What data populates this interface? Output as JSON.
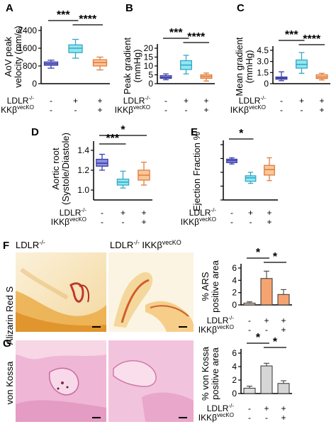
{
  "colors": {
    "ctrl_fill": "#8d8fe0",
    "ctrl_stroke": "#3b3fa8",
    "ldlr_fill": "#8ee8ef",
    "ldlr_stroke": "#3aa6c8",
    "ikk_fill": "#f8c79a",
    "ikk_stroke": "#e27c3c",
    "ars_ctrl": "#f7c9b6",
    "ars_ldlr": "#f5a470",
    "ars_ikk": "#f5a470",
    "vk_ctrl": "#dcdcdc",
    "vk_ldlr": "#d6d6d6",
    "vk_ikk": "#d6d6d6"
  },
  "conditions": {
    "ldlr_label": "LDLR",
    "ldlr_sup": "-/-",
    "ikk_label": "IKKβ",
    "ikk_sup": "vecKO",
    "groups": [
      {
        "ldlr": "-",
        "ikk": "-"
      },
      {
        "ldlr": "+",
        "ikk": "-"
      },
      {
        "ldlr": "+",
        "ikk": "+"
      }
    ]
  },
  "images": {
    "F": {
      "label": "F",
      "row_label": "Alizarin Red S",
      "left_title": "LDLR",
      "left_sup": "-/-",
      "right_title_a": "LDLR",
      "right_sup_a": "-/-",
      "right_title_b": " IKKβ",
      "right_sup_b": "vecKO"
    },
    "G": {
      "label": "G",
      "row_label": "von Kossa"
    }
  },
  "chart_data": [
    {
      "panel": "A",
      "type": "box",
      "ylabel": "AoV peak velocity (mm/s)",
      "ylim": [
        0,
        2400
      ],
      "yticks": [
        "0",
        "800",
        "1600",
        "2400"
      ],
      "boxes": [
        {
          "min": 700,
          "q1": 830,
          "median": 900,
          "q3": 980,
          "max": 1060
        },
        {
          "min": 1150,
          "q1": 1400,
          "median": 1600,
          "q3": 1750,
          "max": 2000
        },
        {
          "min": 620,
          "q1": 800,
          "median": 950,
          "q3": 1080,
          "max": 1200
        }
      ],
      "significance": [
        {
          "from": 0,
          "to": 1,
          "label": "***"
        },
        {
          "from": 1,
          "to": 2,
          "label": "****"
        }
      ]
    },
    {
      "panel": "B",
      "type": "box",
      "ylabel": "Peak gradient (mmHg)",
      "ylim": [
        0,
        20
      ],
      "yticks": [
        "0",
        "5",
        "10",
        "15",
        "20"
      ],
      "boxes": [
        {
          "min": 2.2,
          "q1": 3.0,
          "median": 3.5,
          "q3": 4.5,
          "max": 5.5
        },
        {
          "min": 5.5,
          "q1": 8.0,
          "median": 10.5,
          "q3": 13.0,
          "max": 16.0
        },
        {
          "min": 1.5,
          "q1": 3.0,
          "median": 4.0,
          "q3": 5.0,
          "max": 6.0
        }
      ],
      "significance": [
        {
          "from": 0,
          "to": 1,
          "label": "***"
        },
        {
          "from": 1,
          "to": 2,
          "label": "****"
        }
      ]
    },
    {
      "panel": "C",
      "type": "box",
      "ylabel": "Mean gradient (mmHg)",
      "ylim": [
        0,
        4.5
      ],
      "yticks": [
        "0",
        "1.5",
        "3.0",
        "4.5"
      ],
      "boxes": [
        {
          "min": 0.4,
          "q1": 0.6,
          "median": 0.75,
          "q3": 0.9,
          "max": 1.6
        },
        {
          "min": 1.4,
          "q1": 2.1,
          "median": 2.6,
          "q3": 3.2,
          "max": 4.2
        },
        {
          "min": 0.5,
          "q1": 0.7,
          "median": 0.9,
          "q3": 1.2,
          "max": 1.4
        }
      ],
      "significance": [
        {
          "from": 0,
          "to": 1,
          "label": "***"
        },
        {
          "from": 1,
          "to": 2,
          "label": "****"
        }
      ]
    },
    {
      "panel": "D",
      "type": "box",
      "ylabel": "Aortic root (Systole/Diastole)",
      "ylim": [
        0.9,
        1.45
      ],
      "yticks": [
        "1.0",
        "1.2",
        "1.4"
      ],
      "boxes": [
        {
          "min": 1.2,
          "q1": 1.24,
          "median": 1.27,
          "q3": 1.31,
          "max": 1.36
        },
        {
          "min": 1.02,
          "q1": 1.05,
          "median": 1.08,
          "q3": 1.11,
          "max": 1.19
        },
        {
          "min": 1.05,
          "q1": 1.1,
          "median": 1.15,
          "q3": 1.2,
          "max": 1.28
        }
      ],
      "significance": [
        {
          "from": 0,
          "to": 1,
          "label": "***"
        },
        {
          "from": 0,
          "to": 2,
          "label": "*"
        }
      ]
    },
    {
      "panel": "E",
      "type": "box",
      "ylabel": "Ejection Fraction %",
      "ylim": [
        0,
        80
      ],
      "yticks": [],
      "boxes": [
        {
          "min": 52,
          "q1": 54,
          "median": 57,
          "q3": 59,
          "max": 61
        },
        {
          "min": 24,
          "q1": 27,
          "median": 32,
          "q3": 35,
          "max": 40
        },
        {
          "min": 28,
          "q1": 36,
          "median": 44,
          "q3": 50,
          "max": 61
        }
      ],
      "significance": [
        {
          "from": 0,
          "to": 1,
          "label": "*"
        }
      ]
    },
    {
      "panel": "F",
      "type": "bar",
      "ylabel": "% ARS positive area",
      "ylim": [
        0,
        6
      ],
      "yticks": [
        "0",
        "2",
        "4",
        "6"
      ],
      "values": [
        0.3,
        4.3,
        1.7
      ],
      "errors": [
        0.2,
        1.2,
        0.8
      ],
      "significance": [
        {
          "from": 0,
          "to": 1,
          "label": "*"
        },
        {
          "from": 1,
          "to": 2,
          "label": "*"
        }
      ]
    },
    {
      "panel": "G",
      "type": "bar",
      "ylabel": "% von Kossa positive area",
      "ylim": [
        0,
        6
      ],
      "yticks": [
        "0",
        "2",
        "4",
        "6"
      ],
      "values": [
        0.8,
        4.1,
        1.5
      ],
      "errors": [
        0.3,
        0.4,
        0.4
      ],
      "significance": [
        {
          "from": 0,
          "to": 1,
          "label": "*"
        },
        {
          "from": 1,
          "to": 2,
          "label": "*"
        }
      ]
    }
  ]
}
